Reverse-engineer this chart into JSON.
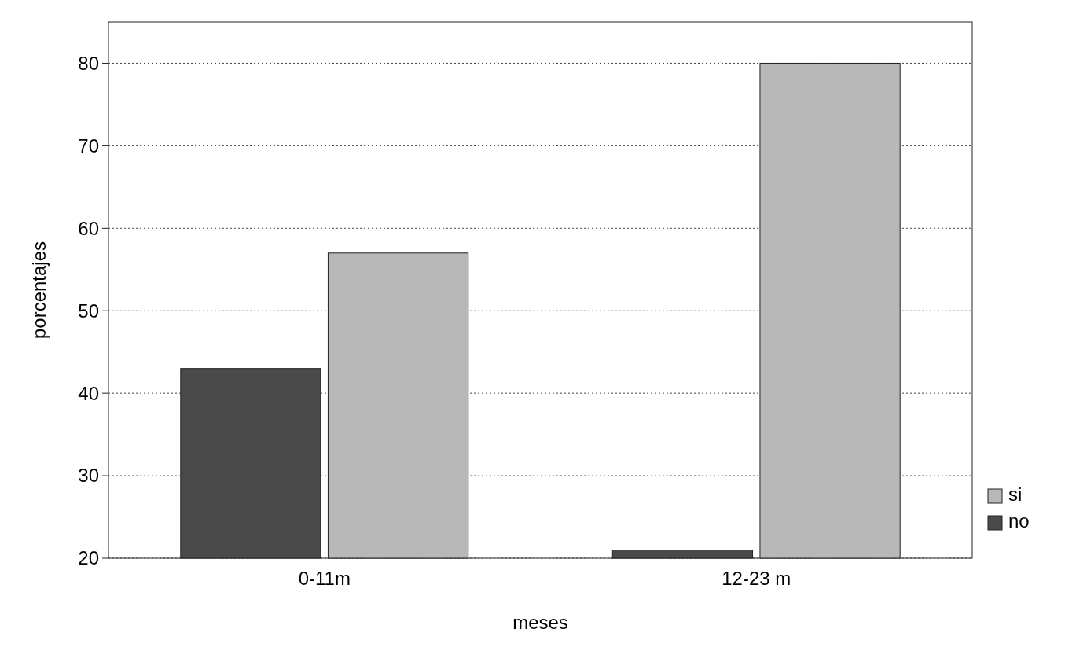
{
  "chart_data": {
    "type": "bar",
    "xlabel": "meses",
    "ylabel": "porcentajes",
    "categories": [
      "0-11m",
      "12-23 m"
    ],
    "series": [
      {
        "name": "no",
        "color": "#4a4a4a",
        "values": [
          43,
          21
        ]
      },
      {
        "name": "si",
        "color": "#b8b8b8",
        "values": [
          57,
          80
        ]
      }
    ],
    "ylim": [
      20,
      85
    ],
    "yticks": [
      20,
      30,
      40,
      50,
      60,
      70,
      80
    ],
    "grid": "y",
    "legend": "right"
  }
}
